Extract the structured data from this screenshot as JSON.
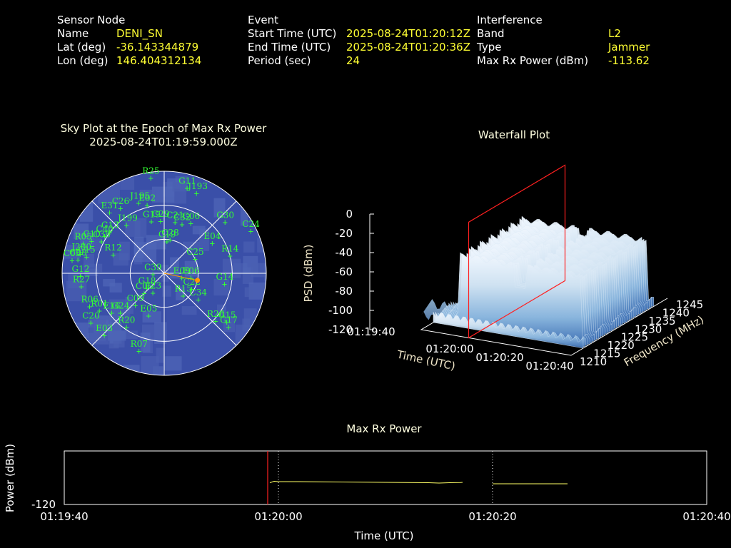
{
  "header": {
    "sensor": {
      "heading": "Sensor Node",
      "rows": [
        {
          "label": "Name",
          "value": "DENI_SN"
        },
        {
          "label": "Lat (deg)",
          "value": "-36.143344879"
        },
        {
          "label": "Lon (deg)",
          "value": "146.404312134"
        }
      ]
    },
    "event": {
      "heading": "Event",
      "rows": [
        {
          "label": "Start Time (UTC)",
          "value": "2025-08-24T01:20:12Z"
        },
        {
          "label": "End Time (UTC)",
          "value": "2025-08-24T01:20:36Z"
        },
        {
          "label": "Period (sec)",
          "value": "24"
        }
      ]
    },
    "interference": {
      "heading": "Interference",
      "rows": [
        {
          "label": "Band",
          "value": "L2"
        },
        {
          "label": "Type",
          "value": "Jammer"
        },
        {
          "label": "Max Rx Power (dBm)",
          "value": "-113.62"
        }
      ]
    }
  },
  "colors": {
    "label": "#ffffff",
    "value": "#ffff33",
    "sky_background": "#3a4fa8",
    "satellite": "#33ff33",
    "marker": "#ff9900",
    "frame_red": "#ff2020",
    "trace": "#ffff66"
  },
  "chart_data": [
    {
      "type": "scatter",
      "kind": "polar-sky-plot",
      "title": "Sky Plot at the Epoch of Max Rx Power",
      "subtitle": "2025-08-24T01:19:59.000Z",
      "elevation_rings_deg": [
        0,
        30,
        60
      ],
      "satellites": [
        {
          "id": "R25",
          "az": 352,
          "el": 5
        },
        {
          "id": "G11",
          "az": 15,
          "el": 12
        },
        {
          "id": "J193",
          "az": 22,
          "el": 14
        },
        {
          "id": "E31",
          "az": 318,
          "el": 18
        },
        {
          "id": "C26",
          "az": 326,
          "el": 21
        },
        {
          "id": "J195",
          "az": 340,
          "el": 24
        },
        {
          "id": "E02",
          "az": 346,
          "el": 28
        },
        {
          "id": "G30",
          "az": 50,
          "el": 20
        },
        {
          "id": "C24",
          "az": 64,
          "el": 5
        },
        {
          "id": "G13",
          "az": 307,
          "el": 30
        },
        {
          "id": "J199",
          "az": 322,
          "el": 36
        },
        {
          "id": "G19",
          "az": 346,
          "el": 43
        },
        {
          "id": "C29",
          "az": 356,
          "el": 44
        },
        {
          "id": "C21",
          "az": 12,
          "el": 44
        },
        {
          "id": "G06",
          "az": 28,
          "el": 40
        },
        {
          "id": "C32",
          "az": 20,
          "el": 44
        },
        {
          "id": "R05",
          "az": 290,
          "el": 14
        },
        {
          "id": "C10",
          "az": 294,
          "el": 20
        },
        {
          "id": "C40",
          "az": 302,
          "el": 28
        },
        {
          "id": "C38",
          "az": 297,
          "el": 28
        },
        {
          "id": "J200",
          "az": 283,
          "el": 14
        },
        {
          "id": "C08",
          "az": 279,
          "el": 13
        },
        {
          "id": "C05",
          "az": 278,
          "el": 8
        },
        {
          "id": "C15",
          "az": 282,
          "el": 20
        },
        {
          "id": "E04",
          "az": 58,
          "el": 40
        },
        {
          "id": "C28",
          "az": 10,
          "el": 60
        },
        {
          "id": "C19",
          "az": 5,
          "el": 62
        },
        {
          "id": "R12",
          "az": 290,
          "el": 42
        },
        {
          "id": "C25",
          "az": 65,
          "el": 60
        },
        {
          "id": "R14",
          "az": 75,
          "el": 30
        },
        {
          "id": "C39",
          "az": 265,
          "el": 80
        },
        {
          "id": "E06",
          "az": 100,
          "el": 66
        },
        {
          "id": "E09",
          "az": 105,
          "el": 74
        },
        {
          "id": "G14",
          "az": 100,
          "el": 36
        },
        {
          "id": "G18",
          "az": 230,
          "el": 70
        },
        {
          "id": "C06",
          "az": 225,
          "el": 65
        },
        {
          "id": "E23",
          "az": 210,
          "el": 70
        },
        {
          "id": "C22",
          "az": 120,
          "el": 62
        },
        {
          "id": "R15",
          "az": 140,
          "el": 64
        },
        {
          "id": "C34",
          "az": 128,
          "el": 52
        },
        {
          "id": "G12",
          "az": 268,
          "el": 16
        },
        {
          "id": "R27",
          "az": 261,
          "el": 16
        },
        {
          "id": "C09",
          "az": 222,
          "el": 52
        },
        {
          "id": "R06",
          "az": 246,
          "el": 18
        },
        {
          "id": "R01",
          "az": 240,
          "el": 24
        },
        {
          "id": "E16",
          "az": 233,
          "el": 32
        },
        {
          "id": "G24",
          "az": 228,
          "el": 38
        },
        {
          "id": "E05",
          "az": 200,
          "el": 50
        },
        {
          "id": "R20",
          "az": 215,
          "el": 32
        },
        {
          "id": "C20",
          "az": 236,
          "el": 12
        },
        {
          "id": "E03",
          "az": 224,
          "el": 14
        },
        {
          "id": "R26",
          "az": 133,
          "el": 28
        },
        {
          "id": "G15",
          "az": 128,
          "el": 20
        },
        {
          "id": "G17",
          "az": 130,
          "el": 16
        },
        {
          "id": "R07",
          "az": 198,
          "el": 18
        }
      ],
      "max_power_marker": {
        "az": 102,
        "el": 60
      }
    },
    {
      "type": "area",
      "kind": "3d-waterfall",
      "title": "Waterfall Plot",
      "zlabel": "PSD (dBm)",
      "xlabel": "Time (UTC)",
      "ylabel": "Frequency (MHz)",
      "z_ticks": [
        "0",
        "-20",
        "-40",
        "-60",
        "-80",
        "-100",
        "-120"
      ],
      "time_ticks": [
        "01:19:40",
        "01:20:00",
        "01:20:20",
        "01:20:40"
      ],
      "freq_ticks": [
        "1210",
        "1215",
        "1220",
        "1225",
        "1230",
        "1235",
        "1240",
        "1245"
      ],
      "zlim": [
        -120,
        0
      ],
      "xlim": [
        "01:19:40",
        "01:20:40"
      ],
      "ylim": [
        1210,
        1245
      ],
      "signal_band_mhz": [
        1216,
        1240
      ],
      "marker_time": "01:19:59"
    },
    {
      "type": "line",
      "title": "Max Rx Power",
      "xlabel": "Time (UTC)",
      "ylabel": "Power (dBm)",
      "y_tick": "-120",
      "x_ticks": [
        "01:19:40",
        "01:20:00",
        "01:20:20",
        "01:20:40"
      ],
      "segments": [
        {
          "points": [
            [
              19.2,
              -113.9
            ],
            [
              19.6,
              -113.5
            ],
            [
              20.0,
              -113.6
            ],
            [
              22,
              -113.6
            ],
            [
              24,
              -113.65
            ],
            [
              26,
              -113.7
            ],
            [
              28,
              -113.75
            ],
            [
              30,
              -113.8
            ],
            [
              32,
              -113.85
            ],
            [
              34,
              -113.9
            ],
            [
              35,
              -114.0
            ],
            [
              36,
              -113.9
            ],
            [
              37,
              -113.85
            ],
            [
              37.2,
              -113.8
            ]
          ]
        },
        {
          "points": [
            [
              40,
              -114.2
            ],
            [
              47,
              -114.2
            ]
          ]
        }
      ],
      "marker_time": 19,
      "dashed_times": [
        20,
        40
      ]
    }
  ]
}
